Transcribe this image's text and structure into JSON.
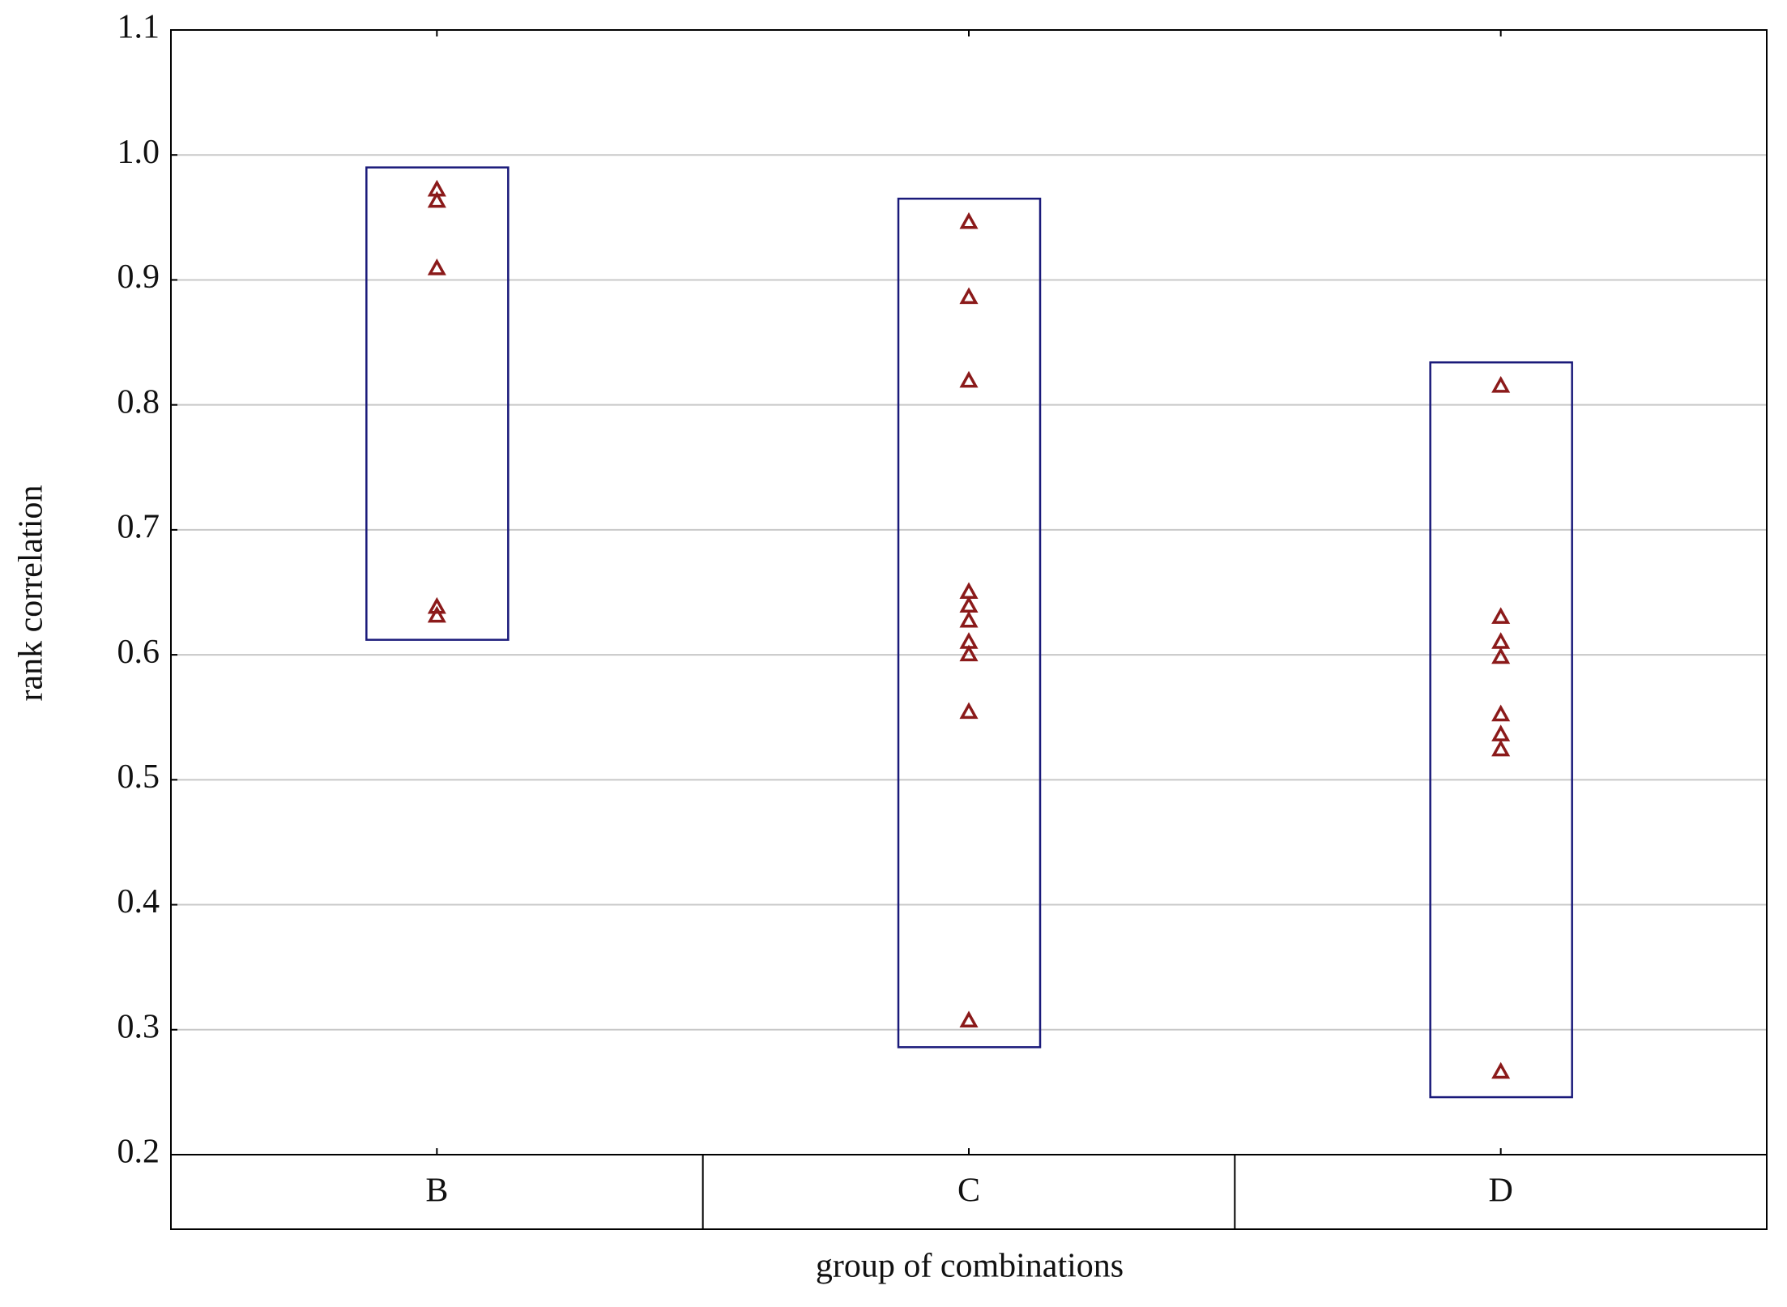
{
  "chart_data": {
    "type": "strip",
    "x_label": "group of combinations",
    "y_label": "rank correlation",
    "categories": [
      "B",
      "C",
      "D"
    ],
    "values": [
      [
        0.972,
        0.963,
        0.909,
        0.638,
        0.631
      ],
      [
        0.946,
        0.886,
        0.819,
        0.65,
        0.639,
        0.627,
        0.61,
        0.6,
        0.554,
        0.307
      ],
      [
        0.815,
        0.63,
        0.61,
        0.598,
        0.552,
        0.536,
        0.524,
        0.266
      ]
    ],
    "ranges": [
      [
        0.612,
        0.99
      ],
      [
        0.286,
        0.965
      ],
      [
        0.246,
        0.834
      ]
    ],
    "color": "#8b1a1a",
    "range_color": "#1a1a7a",
    "ylim": [
      0.2,
      1.1
    ],
    "yticks": [
      0.2,
      0.3,
      0.4,
      0.5,
      0.6,
      0.7,
      0.8,
      0.9,
      {
        "value": 1,
        "label": "1.0"
      },
      1.1
    ],
    "grid": true
  }
}
